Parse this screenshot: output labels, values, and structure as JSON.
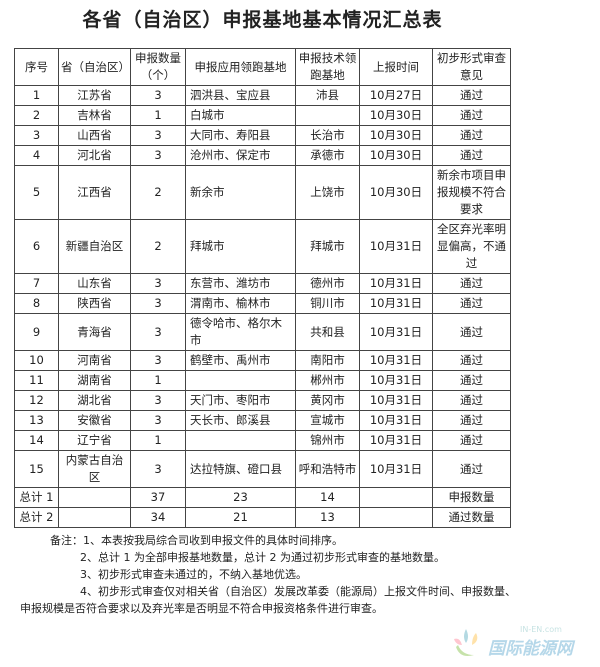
{
  "title": "各省（自治区）申报基地基本情况汇总表",
  "headers": [
    "序号",
    "省（自治区）",
    "申报数量（个）",
    "申报应用领跑基地",
    "申报技术领跑基地",
    "上报时间",
    "初步形式审查意见"
  ],
  "rows": [
    {
      "no": "1",
      "province": "江苏省",
      "count": "3",
      "app": "泗洪县、宝应县",
      "tech": "沛县",
      "date": "10月27日",
      "result": "通过"
    },
    {
      "no": "2",
      "province": "吉林省",
      "count": "1",
      "app": "白城市",
      "tech": "",
      "date": "10月30日",
      "result": "通过"
    },
    {
      "no": "3",
      "province": "山西省",
      "count": "3",
      "app": "大同市、寿阳县",
      "tech": "长治市",
      "date": "10月30日",
      "result": "通过"
    },
    {
      "no": "4",
      "province": "河北省",
      "count": "3",
      "app": "沧州市、保定市",
      "tech": "承德市",
      "date": "10月30日",
      "result": "通过"
    },
    {
      "no": "5",
      "province": "江西省",
      "count": "2",
      "app": "新余市",
      "tech": "上饶市",
      "date": "10月30日",
      "result": "新余市项目申报规模不符合要求"
    },
    {
      "no": "6",
      "province": "新疆自治区",
      "count": "2",
      "app": "拜城市",
      "tech": "拜城市",
      "date": "10月31日",
      "result": "全区弃光率明显偏高，不通过"
    },
    {
      "no": "7",
      "province": "山东省",
      "count": "3",
      "app": "东营市、潍坊市",
      "tech": "德州市",
      "date": "10月31日",
      "result": "通过"
    },
    {
      "no": "8",
      "province": "陕西省",
      "count": "3",
      "app": "渭南市、榆林市",
      "tech": "铜川市",
      "date": "10月31日",
      "result": "通过"
    },
    {
      "no": "9",
      "province": "青海省",
      "count": "3",
      "app": "德令哈市、格尔木市",
      "tech": "共和县",
      "date": "10月31日",
      "result": "通过"
    },
    {
      "no": "10",
      "province": "河南省",
      "count": "3",
      "app": "鹤壁市、禹州市",
      "tech": "南阳市",
      "date": "10月31日",
      "result": "通过"
    },
    {
      "no": "11",
      "province": "湖南省",
      "count": "1",
      "app": "",
      "tech": "郴州市",
      "date": "10月31日",
      "result": "通过"
    },
    {
      "no": "12",
      "province": "湖北省",
      "count": "3",
      "app": "天门市、枣阳市",
      "tech": "黄冈市",
      "date": "10月31日",
      "result": "通过"
    },
    {
      "no": "13",
      "province": "安徽省",
      "count": "3",
      "app": "天长市、郎溪县",
      "tech": "宣城市",
      "date": "10月31日",
      "result": "通过"
    },
    {
      "no": "14",
      "province": "辽宁省",
      "count": "1",
      "app": "",
      "tech": "锦州市",
      "date": "10月31日",
      "result": "通过"
    },
    {
      "no": "15",
      "province": "内蒙古自治区",
      "count": "3",
      "app": "达拉特旗、磴口县",
      "tech": "呼和浩特市",
      "date": "10月31日",
      "result": "通过"
    }
  ],
  "totals": [
    {
      "label": "总计 1",
      "count": "37",
      "app": "23",
      "tech": "14",
      "result": "申报数量"
    },
    {
      "label": "总计 2",
      "count": "34",
      "app": "21",
      "tech": "13",
      "result": "通过数量"
    }
  ],
  "notes": [
    "备注：1、本表按我局综合司收到申报文件的具体时间排序。",
    "2、总计 1 为全部申报基地数量，总计 2 为通过初步形式审查的基地数量。",
    "3、初步形式审查未通过的，不纳入基地优选。",
    "4、初步形式审查仅对相关省（自治区）发展改革委（能源局）上报文件时间、申报数量、",
    "申报规模是否符合要求以及弃光率是否明显不符合申报资格条件进行审查。"
  ],
  "watermark": {
    "text": "国际能源网",
    "sub": "IN-EN.com"
  }
}
